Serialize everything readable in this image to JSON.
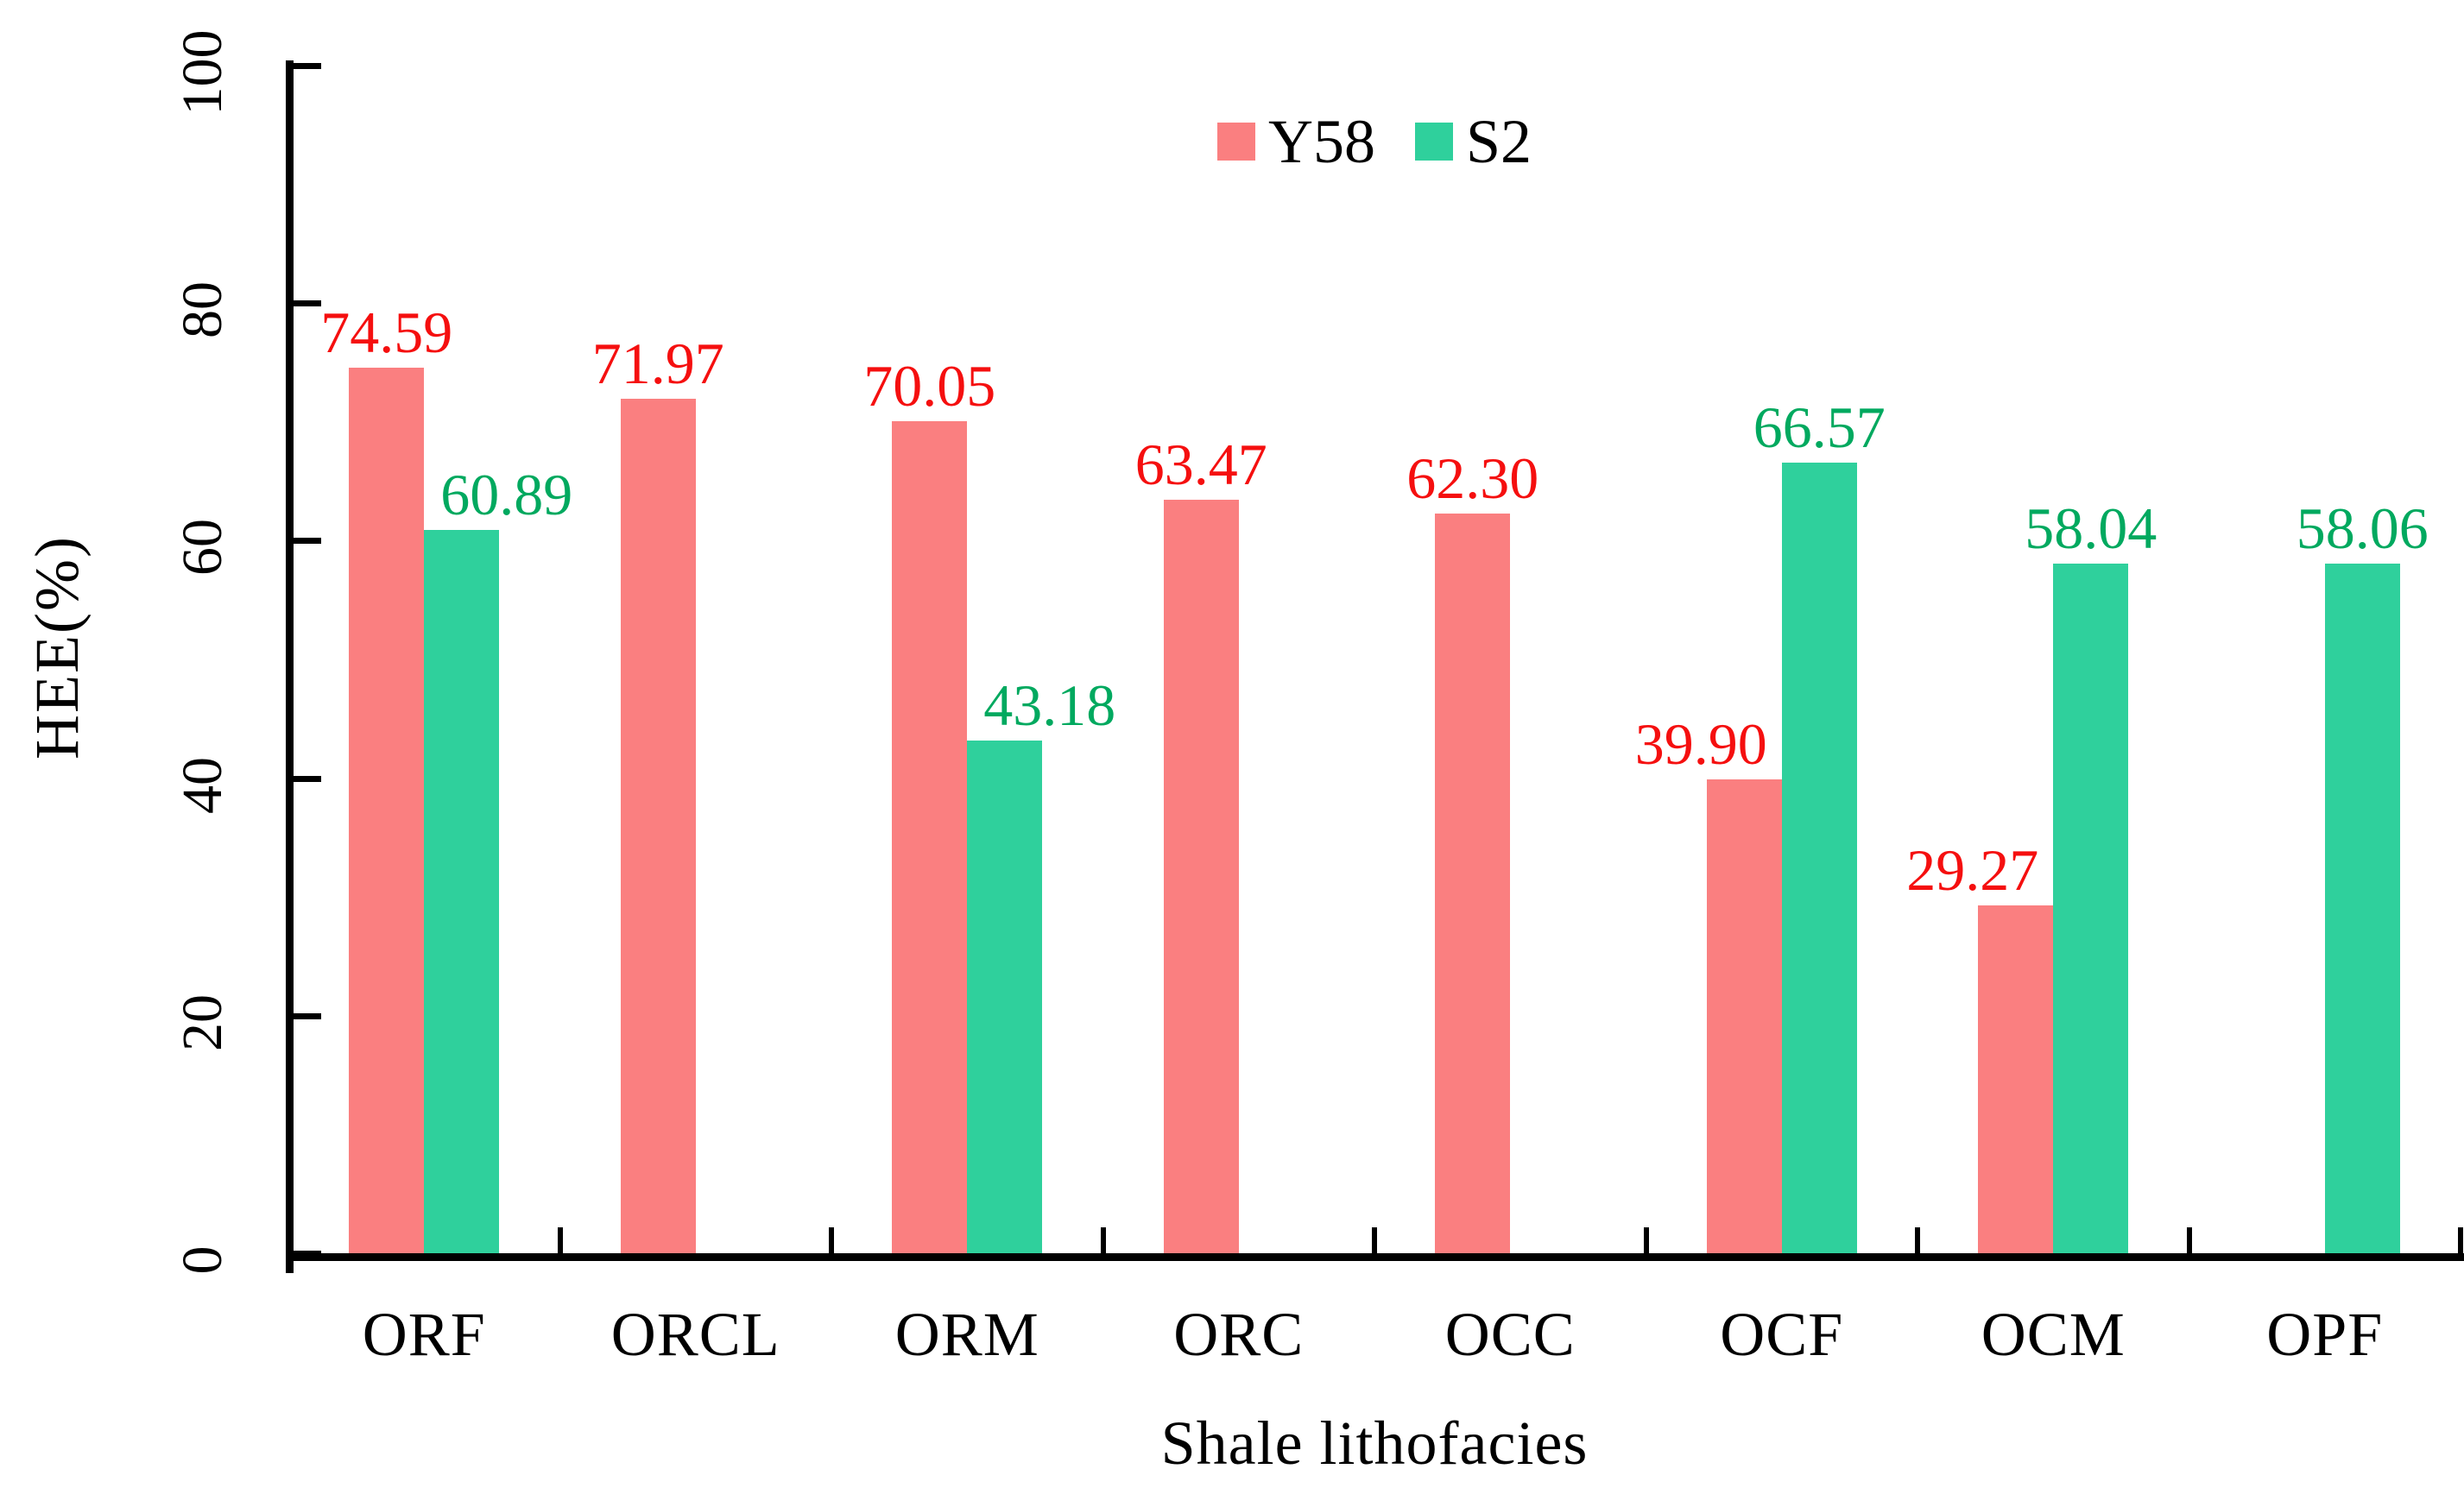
{
  "figure": {
    "background": "#ffffff"
  },
  "legend": {
    "position": "top-center",
    "items": [
      {
        "label": "Y58",
        "color": "#fa7f80"
      },
      {
        "label": "S2",
        "color": "#2fd09c"
      }
    ]
  },
  "chart_data": {
    "type": "bar",
    "title": "",
    "xlabel": "Shale lithofacies",
    "ylabel": "HEE(%)",
    "ylim": [
      0,
      100
    ],
    "yticks": [
      0,
      20,
      40,
      60,
      80,
      100
    ],
    "ytick_labels": [
      "0",
      "20",
      "40",
      "60",
      "80",
      "100"
    ],
    "categories": [
      "ORF",
      "ORCL",
      "ORM",
      "ORC",
      "OCC",
      "OCF",
      "OCM",
      "OPF"
    ],
    "series": [
      {
        "name": "Y58",
        "bar_color": "#fa7f80",
        "label_color": "#f50f0f",
        "values": [
          74.59,
          71.97,
          70.05,
          63.47,
          62.3,
          39.9,
          29.27,
          null
        ],
        "labels": [
          "74.59",
          "71.97",
          "70.05",
          "63.47",
          "62.30",
          "39.90",
          "29.27",
          null
        ]
      },
      {
        "name": "S2",
        "bar_color": "#2fd09c",
        "label_color": "#00a95f",
        "values": [
          60.89,
          null,
          43.18,
          null,
          null,
          66.57,
          58.04,
          58.06
        ],
        "labels": [
          "60.89",
          null,
          "43.18",
          null,
          null,
          "66.57",
          "58.04",
          "58.06"
        ]
      }
    ],
    "legend_position": "top-center",
    "grid": false,
    "axis_color": "#000000"
  }
}
